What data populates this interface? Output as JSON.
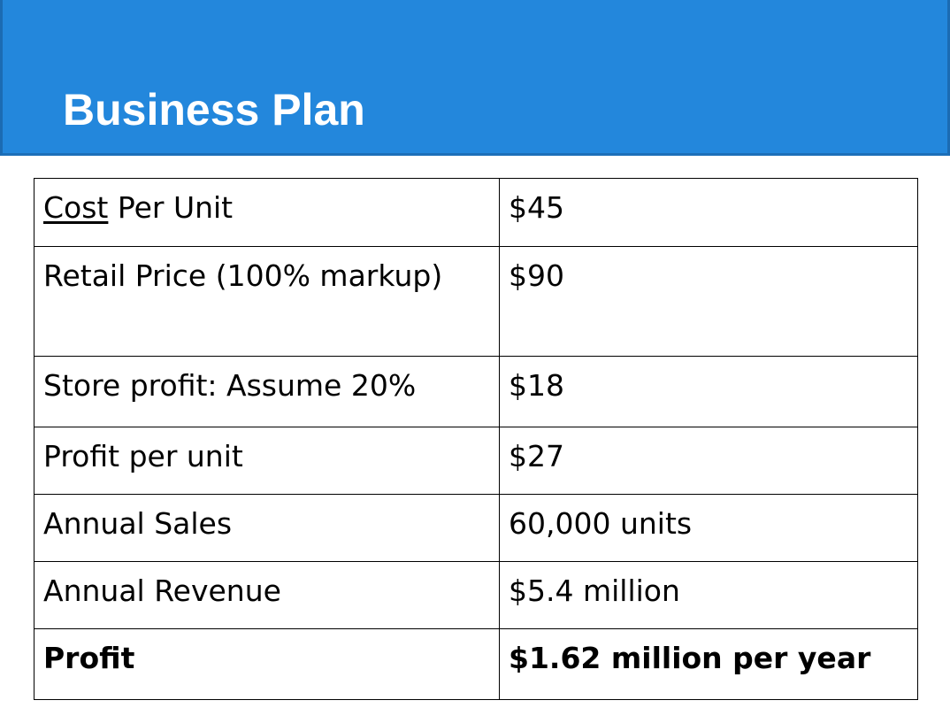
{
  "slide": {
    "title": "Business Plan",
    "header_color": "#2387dc"
  },
  "table": {
    "rows": [
      {
        "label_underlined": "Cost",
        "label_rest": " Per Unit",
        "value": "$45"
      },
      {
        "label": "Retail Price (100% markup)",
        "value": "$90"
      },
      {
        "label": "Store profit: Assume 20%",
        "value": "$18"
      },
      {
        "label": "Profit per unit",
        "value": "$27"
      },
      {
        "label": "Annual Sales",
        "value": "60,000 units"
      },
      {
        "label": "Annual Revenue",
        "value": "$5.4 million"
      },
      {
        "label": "Profit",
        "value": "$1.62 million per year",
        "bold": true
      }
    ]
  }
}
